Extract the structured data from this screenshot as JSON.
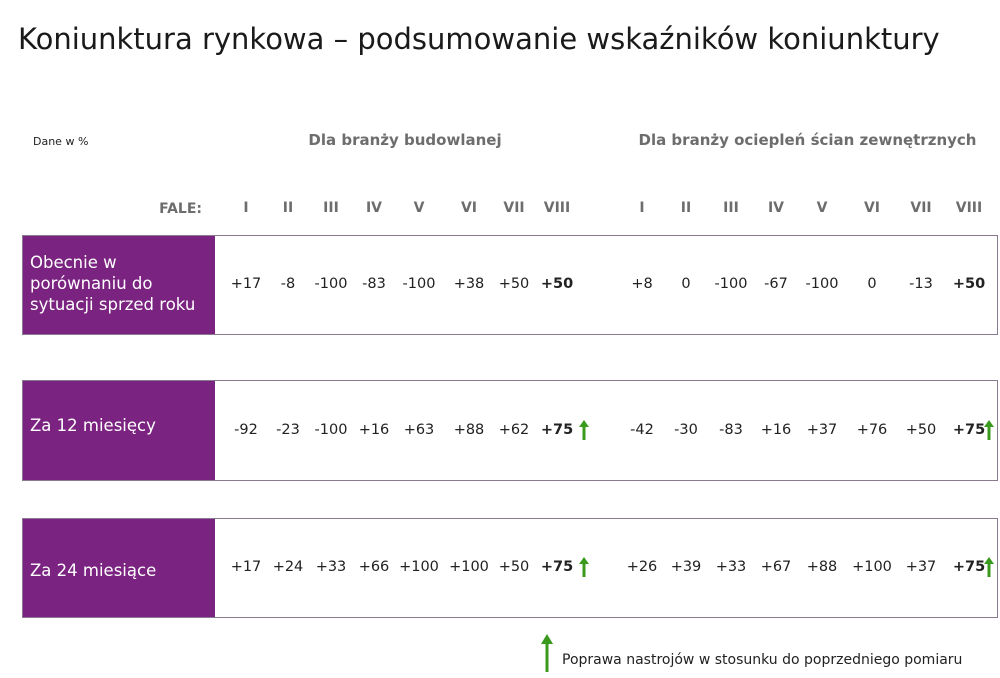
{
  "title": "Koniunktura rynkowa – podsumowanie wskaźników koniunktury",
  "units_note": "Dane w %",
  "groups": {
    "construction": "Dla branży budowlanej",
    "insulation": "Dla branży ociepleń ścian zewnętrznych"
  },
  "waves_label": "FALE:",
  "waves": [
    "I",
    "II",
    "III",
    "IV",
    "V",
    "VI",
    "VII",
    "VIII"
  ],
  "rows": [
    {
      "label": "Obecnie w porównaniu do sytuacji sprzed roku",
      "construction": [
        "+17",
        "-8",
        "-100",
        "-83",
        "-100",
        "+38",
        "+50",
        "+50"
      ],
      "insulation": [
        "+8",
        "0",
        "-100",
        "-67",
        "-100",
        "0",
        "-13",
        "+50"
      ],
      "improved": false
    },
    {
      "label": "Za 12 miesięcy",
      "construction": [
        "-92",
        "-23",
        "-100",
        "+16",
        "+63",
        "+88",
        "+62",
        "+75"
      ],
      "insulation": [
        "-42",
        "-30",
        "-83",
        "+16",
        "+37",
        "+76",
        "+50",
        "+75"
      ],
      "improved": true
    },
    {
      "label": "Za 24 miesiące",
      "construction": [
        "+17",
        "+24",
        "+33",
        "+66",
        "+100",
        "+100",
        "+50",
        "+75"
      ],
      "insulation": [
        "+26",
        "+39",
        "+33",
        "+67",
        "+88",
        "+100",
        "+37",
        "+75"
      ],
      "improved": true
    }
  ],
  "legend": {
    "text": "Poprawa nastrojów w stosunku do poprzedniego pomiaru",
    "icon": "up-arrow-icon"
  },
  "colors": {
    "label_bg": "#7a2380",
    "arrow": "#3a9a1e",
    "header_text": "#6d6d6d"
  }
}
